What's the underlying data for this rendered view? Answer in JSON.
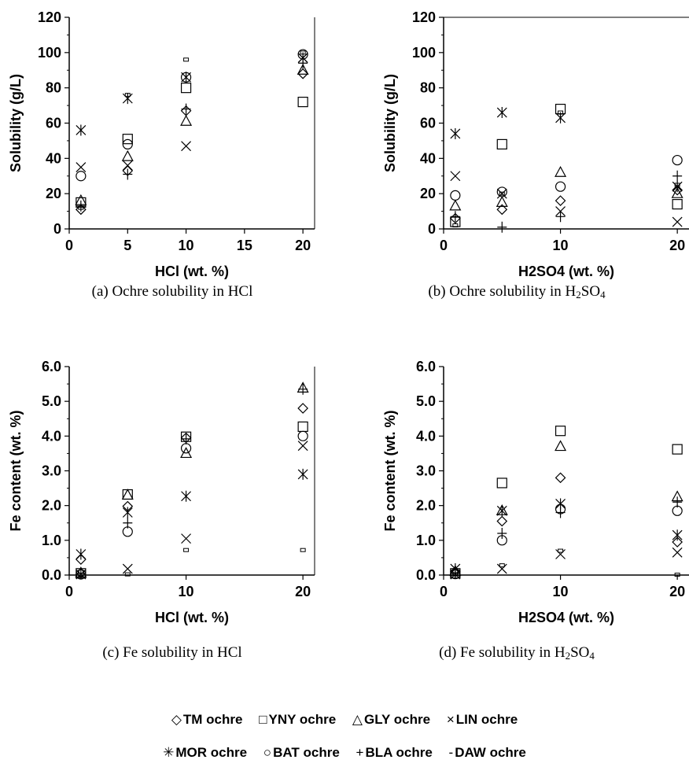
{
  "series_meta": [
    {
      "key": "TM",
      "name": "TM ochre",
      "symbol": "diamond",
      "glyph": "◇"
    },
    {
      "key": "YNY",
      "name": "YNY ochre",
      "symbol": "square",
      "glyph": "□"
    },
    {
      "key": "GLY",
      "name": "GLY ochre",
      "symbol": "triangle",
      "glyph": "△"
    },
    {
      "key": "LIN",
      "name": "LIN ochre",
      "symbol": "x",
      "glyph": "×"
    },
    {
      "key": "MOR",
      "name": "MOR ochre",
      "symbol": "star",
      "glyph": "✳"
    },
    {
      "key": "BAT",
      "name": "BAT ochre",
      "symbol": "circle",
      "glyph": "○"
    },
    {
      "key": "BLA",
      "name": "BLA ochre",
      "symbol": "plus",
      "glyph": "+"
    },
    {
      "key": "DAW",
      "name": "DAW ochre",
      "symbol": "dash",
      "glyph": "-"
    }
  ],
  "legend_rows": [
    [
      "TM",
      "YNY",
      "GLY",
      "LIN"
    ],
    [
      "MOR",
      "BAT",
      "BLA",
      "DAW"
    ]
  ],
  "captions": {
    "a": "(a) Ochre solubility in HCl",
    "b_prefix": "(b) Ochre  solubility in H",
    "b_sub1": "2",
    "b_mid": "SO",
    "b_sub2": "4",
    "c": "(c) Fe solubility in HCl",
    "d_prefix": "(d)  Fe solubility in H",
    "d_sub1": "2",
    "d_mid": "SO",
    "d_sub2": "4"
  },
  "chart_data": [
    {
      "type": "scatter",
      "xlabel": "HCl (wt. %)",
      "ylabel": "Solubility (g/L)",
      "xlim": [
        0,
        21
      ],
      "ylim": [
        0,
        120
      ],
      "xticks": [
        0,
        5,
        10,
        15,
        20
      ],
      "yticks": [
        0,
        20,
        40,
        60,
        80,
        100,
        120
      ],
      "ytick_labels": [
        "0",
        "20",
        "40",
        "60",
        "80",
        "100",
        "120"
      ],
      "grid": false,
      "x": [
        1,
        5,
        10,
        20
      ],
      "series": [
        {
          "name": "TM ochre",
          "values": [
            11,
            33,
            67,
            88
          ]
        },
        {
          "name": "YNY ochre",
          "values": [
            15,
            51,
            80,
            72
          ]
        },
        {
          "name": "GLY ochre",
          "values": [
            16,
            41,
            61,
            90
          ]
        },
        {
          "name": "LIN ochre",
          "values": [
            35,
            36,
            47,
            97
          ]
        },
        {
          "name": "MOR ochre",
          "values": [
            56,
            74,
            86,
            97
          ]
        },
        {
          "name": "BAT ochre",
          "values": [
            30,
            48,
            86,
            99
          ]
        },
        {
          "name": "BLA ochre",
          "values": [
            13,
            31,
            68,
            94
          ]
        },
        {
          "name": "DAW ochre",
          "values": [
            12,
            76,
            96,
            100
          ]
        }
      ]
    },
    {
      "type": "scatter",
      "xlabel": "H2SO4 (wt. %)",
      "ylabel": "Solubility (g/L)",
      "xlim": [
        0,
        21
      ],
      "ylim": [
        0,
        120
      ],
      "xticks": [
        0,
        10,
        20
      ],
      "yticks": [
        0,
        20,
        40,
        60,
        80,
        100,
        120
      ],
      "ytick_labels": [
        "0",
        "20",
        "40",
        "60",
        "80",
        "100",
        "120"
      ],
      "grid": false,
      "x": [
        1,
        5,
        10,
        20
      ],
      "series": [
        {
          "name": "TM ochre",
          "values": [
            6,
            11,
            16,
            22
          ]
        },
        {
          "name": "YNY ochre",
          "values": [
            4,
            48,
            68,
            14
          ]
        },
        {
          "name": "GLY ochre",
          "values": [
            13,
            15,
            32,
            20
          ]
        },
        {
          "name": "LIN ochre",
          "values": [
            30,
            20,
            10,
            4
          ]
        },
        {
          "name": "MOR ochre",
          "values": [
            54,
            66,
            63,
            24
          ]
        },
        {
          "name": "BAT ochre",
          "values": [
            19,
            21,
            24,
            39
          ]
        },
        {
          "name": "BLA ochre",
          "values": [
            7,
            1,
            7,
            30
          ]
        },
        {
          "name": "DAW ochre",
          "values": [
            2,
            20,
            66,
            25
          ]
        }
      ]
    },
    {
      "type": "scatter",
      "xlabel": "HCl (wt. %)",
      "ylabel": "Fe content (wt. %)",
      "xlim": [
        0,
        21
      ],
      "ylim": [
        0,
        6
      ],
      "xticks": [
        0,
        10,
        20
      ],
      "yticks": [
        0,
        1,
        2,
        3,
        4,
        5,
        6
      ],
      "ytick_labels": [
        "0.0",
        "1.0",
        "2.0",
        "3.0",
        "4.0",
        "5.0",
        "6.0"
      ],
      "grid": false,
      "x": [
        1,
        5,
        10,
        20
      ],
      "series": [
        {
          "name": "TM ochre",
          "values": [
            0.45,
            1.98,
            3.95,
            4.8
          ]
        },
        {
          "name": "YNY ochre",
          "values": [
            0.05,
            2.32,
            3.98,
            4.27
          ]
        },
        {
          "name": "GLY ochre",
          "values": [
            0.06,
            2.3,
            3.5,
            5.38
          ]
        },
        {
          "name": "LIN ochre",
          "values": [
            0.02,
            0.18,
            1.05,
            3.72
          ]
        },
        {
          "name": "MOR ochre",
          "values": [
            0.6,
            1.8,
            2.27,
            2.9
          ]
        },
        {
          "name": "BAT ochre",
          "values": [
            0.02,
            1.25,
            3.65,
            4.0
          ]
        },
        {
          "name": "BLA ochre",
          "values": [
            0.05,
            1.5,
            3.92,
            5.35
          ]
        },
        {
          "name": "DAW ochre",
          "values": [
            0.01,
            0.02,
            0.72,
            0.72
          ]
        }
      ]
    },
    {
      "type": "scatter",
      "xlabel": "H2SO4 (wt. %)",
      "ylabel": "Fe content (wt. %)",
      "xlim": [
        0,
        21
      ],
      "ylim": [
        0,
        6
      ],
      "xticks": [
        0,
        10,
        20
      ],
      "yticks": [
        0,
        1,
        2,
        3,
        4,
        5,
        6
      ],
      "ytick_labels": [
        "0.0",
        "1.0",
        "2.0",
        "3.0",
        "4.0",
        "5.0",
        "6.0"
      ],
      "grid": false,
      "x": [
        1,
        5,
        10,
        20
      ],
      "series": [
        {
          "name": "TM ochre",
          "values": [
            0.1,
            1.55,
            2.8,
            0.95
          ]
        },
        {
          "name": "YNY ochre",
          "values": [
            0.05,
            2.65,
            4.15,
            3.62
          ]
        },
        {
          "name": "GLY ochre",
          "values": [
            0.1,
            1.85,
            3.7,
            2.25
          ]
        },
        {
          "name": "LIN ochre",
          "values": [
            0.02,
            0.18,
            0.6,
            0.65
          ]
        },
        {
          "name": "MOR ochre",
          "values": [
            0.18,
            1.85,
            2.05,
            1.15
          ]
        },
        {
          "name": "BAT ochre",
          "values": [
            0.03,
            1.0,
            1.9,
            1.85
          ]
        },
        {
          "name": "BLA ochre",
          "values": [
            0.05,
            1.2,
            1.8,
            2.1
          ]
        },
        {
          "name": "DAW ochre",
          "values": [
            0.02,
            0.28,
            0.7,
            0.01
          ]
        }
      ]
    }
  ]
}
